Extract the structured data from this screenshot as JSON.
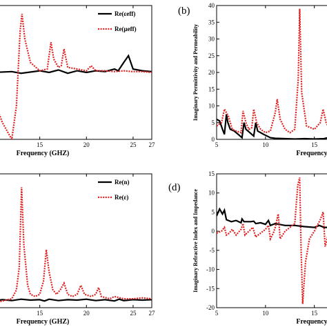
{
  "chart_data": [
    {
      "id": "a",
      "type": "line",
      "xlabel": "Frequency (GHZ)",
      "ylabel": "",
      "xlim": [
        10,
        27
      ],
      "ylim": [
        -4,
        4
      ],
      "xticks": [
        15,
        20,
        25,
        27
      ],
      "yticks": [],
      "legend": "top-right",
      "series": [
        {
          "name": "Re(εeff)",
          "style": "solid",
          "color": "#000000",
          "points": [
            [
              10,
              0
            ],
            [
              12,
              0.05
            ],
            [
              13,
              -0.05
            ],
            [
              15,
              0.1
            ],
            [
              16,
              0
            ],
            [
              17,
              0.15
            ],
            [
              18,
              -0.05
            ],
            [
              19,
              0.1
            ],
            [
              20,
              0
            ],
            [
              21,
              0.1
            ],
            [
              22,
              0.05
            ],
            [
              23,
              0.2
            ],
            [
              23.4,
              0.1
            ],
            [
              24,
              0.6
            ],
            [
              24.5,
              1.0
            ],
            [
              25,
              0.2
            ],
            [
              26,
              0.1
            ],
            [
              27,
              0.05
            ]
          ]
        },
        {
          "name": "Re(μeff)",
          "style": "dotted",
          "color": "#e02020",
          "points": [
            [
              10,
              -1.5
            ],
            [
              11,
              -3.0
            ],
            [
              12,
              -4.0
            ],
            [
              12.5,
              -2.0
            ],
            [
              12.9,
              2.5
            ],
            [
              13.1,
              3.5
            ],
            [
              13.4,
              2.0
            ],
            [
              14,
              0.6
            ],
            [
              15,
              0.1
            ],
            [
              15.8,
              0.2
            ],
            [
              16.2,
              1.8
            ],
            [
              16.5,
              0.8
            ],
            [
              17,
              0.3
            ],
            [
              17.3,
              0.4
            ],
            [
              17.6,
              1.4
            ],
            [
              18,
              0.3
            ],
            [
              19,
              0.2
            ],
            [
              20,
              0.1
            ],
            [
              20.5,
              0.4
            ],
            [
              21,
              0.1
            ],
            [
              22,
              0.1
            ],
            [
              23,
              0.05
            ],
            [
              24,
              0.1
            ],
            [
              25,
              0.05
            ],
            [
              26,
              0.05
            ],
            [
              27,
              0
            ]
          ]
        }
      ]
    },
    {
      "id": "b",
      "label": "(b)",
      "type": "line",
      "xlabel": "Frequency",
      "ylabel": "Imaginary Permittivity and Permeability",
      "xlim": [
        5,
        17
      ],
      "ylim": [
        0,
        40
      ],
      "xticks": [
        5,
        10,
        15
      ],
      "yticks": [
        0,
        5,
        10,
        15,
        20,
        25,
        30,
        35,
        40
      ],
      "legend": "none",
      "series": [
        {
          "name": "",
          "style": "solid",
          "color": "#000000",
          "points": [
            [
              5,
              6
            ],
            [
              5.3,
              5.5
            ],
            [
              5.6,
              3
            ],
            [
              5.8,
              1.5
            ],
            [
              6,
              7.5
            ],
            [
              6.15,
              5
            ],
            [
              6.4,
              3
            ],
            [
              6.8,
              2.5
            ],
            [
              7.2,
              1.5
            ],
            [
              7.6,
              0.5
            ],
            [
              7.8,
              5
            ],
            [
              8,
              3
            ],
            [
              8.4,
              2
            ],
            [
              8.8,
              1
            ],
            [
              9.0,
              5
            ],
            [
              9.2,
              2.5
            ],
            [
              9.8,
              1.5
            ],
            [
              10.5,
              0.5
            ],
            [
              11,
              0.3
            ],
            [
              12,
              0.2
            ],
            [
              13,
              0.1
            ],
            [
              14,
              0.2
            ],
            [
              15,
              0.1
            ],
            [
              16,
              0.2
            ],
            [
              17,
              1.0
            ]
          ]
        },
        {
          "name": "",
          "style": "dotted",
          "color": "#e02020",
          "points": [
            [
              5,
              4
            ],
            [
              5.5,
              5
            ],
            [
              5.8,
              9
            ],
            [
              6.2,
              7
            ],
            [
              6.6,
              3
            ],
            [
              7,
              2.5
            ],
            [
              7.5,
              2
            ],
            [
              7.7,
              8.5
            ],
            [
              8,
              5
            ],
            [
              8.3,
              3
            ],
            [
              8.6,
              3.5
            ],
            [
              8.8,
              9
            ],
            [
              9.1,
              5
            ],
            [
              9.5,
              3
            ],
            [
              10,
              2
            ],
            [
              10.5,
              2.5
            ],
            [
              11,
              8
            ],
            [
              11.2,
              12
            ],
            [
              11.5,
              6
            ],
            [
              12,
              3
            ],
            [
              12.5,
              2
            ],
            [
              13,
              3
            ],
            [
              13.35,
              18
            ],
            [
              13.5,
              39
            ],
            [
              13.7,
              14
            ],
            [
              14.2,
              4
            ],
            [
              15,
              3
            ],
            [
              15.6,
              5
            ],
            [
              15.9,
              9
            ],
            [
              16.2,
              5
            ],
            [
              16.6,
              3
            ],
            [
              17,
              2
            ]
          ]
        }
      ]
    },
    {
      "id": "c",
      "type": "line",
      "xlabel": "Frequency (GHZ)",
      "ylabel": "",
      "xlim": [
        10,
        27
      ],
      "ylim": [
        0,
        30
      ],
      "xticks": [
        15,
        20,
        25,
        27
      ],
      "yticks": [],
      "legend": "top-right",
      "series": [
        {
          "name": "Re(n)",
          "style": "solid",
          "color": "#000000",
          "points": [
            [
              10,
              1.5
            ],
            [
              11,
              1.8
            ],
            [
              12,
              1.6
            ],
            [
              13,
              1.9
            ],
            [
              14,
              1.7
            ],
            [
              15,
              1.8
            ],
            [
              15.5,
              1.5
            ],
            [
              16,
              1.9
            ],
            [
              17,
              1.6
            ],
            [
              18,
              1.8
            ],
            [
              19,
              1.7
            ],
            [
              20,
              1.9
            ],
            [
              21,
              1.6
            ],
            [
              22,
              1.8
            ],
            [
              23,
              1.5
            ],
            [
              23.5,
              1.9
            ],
            [
              24,
              1.6
            ],
            [
              25,
              1.8
            ],
            [
              26,
              1.7
            ],
            [
              27,
              1.8
            ]
          ]
        },
        {
          "name": "Re(ε)",
          "style": "dotted",
          "color": "#e02020",
          "points": [
            [
              10,
              1
            ],
            [
              11,
              1.5
            ],
            [
              12,
              2
            ],
            [
              12.5,
              4
            ],
            [
              12.8,
              9
            ],
            [
              13.05,
              27
            ],
            [
              13.3,
              14
            ],
            [
              13.7,
              5
            ],
            [
              14,
              3
            ],
            [
              14.5,
              2.5
            ],
            [
              15,
              3
            ],
            [
              15.4,
              6
            ],
            [
              15.7,
              13
            ],
            [
              16,
              8
            ],
            [
              16.4,
              4
            ],
            [
              16.8,
              3
            ],
            [
              17.2,
              4
            ],
            [
              17.6,
              5.5
            ],
            [
              18,
              3
            ],
            [
              18.5,
              2.5
            ],
            [
              19,
              3
            ],
            [
              19.4,
              5
            ],
            [
              19.8,
              3
            ],
            [
              20.5,
              2.5
            ],
            [
              21,
              3
            ],
            [
              21.3,
              4.5
            ],
            [
              21.6,
              2.5
            ],
            [
              22.5,
              2
            ],
            [
              23,
              2.5
            ],
            [
              24,
              2
            ],
            [
              25,
              2
            ],
            [
              26,
              2.2
            ],
            [
              27,
              2
            ]
          ]
        }
      ]
    },
    {
      "id": "d",
      "label": "(d)",
      "type": "line",
      "xlabel": "Frequency",
      "ylabel": "Imaginary Refractive Index and Impedance",
      "xlim": [
        5,
        17
      ],
      "ylim": [
        -20,
        15
      ],
      "xticks": [
        5,
        10,
        15
      ],
      "yticks": [
        -20,
        -15,
        -10,
        -5,
        0,
        5,
        10,
        15
      ],
      "legend": "none",
      "series": [
        {
          "name": "",
          "style": "solid",
          "color": "#000000",
          "points": [
            [
              5,
              4
            ],
            [
              5.3,
              5.8
            ],
            [
              5.6,
              4.5
            ],
            [
              5.8,
              5.5
            ],
            [
              6,
              3
            ],
            [
              6.5,
              2.5
            ],
            [
              7,
              2.8
            ],
            [
              7.5,
              2.2
            ],
            [
              7.6,
              3.2
            ],
            [
              7.8,
              2.5
            ],
            [
              8.5,
              2.5
            ],
            [
              8.8,
              2.6
            ],
            [
              9,
              2
            ],
            [
              9.5,
              2.2
            ],
            [
              10,
              1.8
            ],
            [
              10.3,
              2.8
            ],
            [
              10.5,
              1.5
            ],
            [
              11,
              2
            ],
            [
              12,
              1.5
            ],
            [
              13,
              1.5
            ],
            [
              14,
              1.2
            ],
            [
              15,
              1.0
            ],
            [
              15.5,
              1.5
            ],
            [
              16,
              1.0
            ],
            [
              17,
              1.0
            ]
          ]
        },
        {
          "name": "",
          "style": "dotted",
          "color": "#e02020",
          "points": [
            [
              5,
              -0.5
            ],
            [
              5.5,
              0
            ],
            [
              5.8,
              1
            ],
            [
              6,
              -1
            ],
            [
              6.3,
              -0.5
            ],
            [
              6.6,
              0.5
            ],
            [
              7,
              -1
            ],
            [
              7.5,
              0.5
            ],
            [
              7.7,
              2
            ],
            [
              7.9,
              -1
            ],
            [
              8.3,
              0
            ],
            [
              8.7,
              1
            ],
            [
              9,
              -1.5
            ],
            [
              9.5,
              -0.5
            ],
            [
              10,
              0.5
            ],
            [
              10.3,
              1.5
            ],
            [
              10.5,
              -2
            ],
            [
              10.8,
              -0.5
            ],
            [
              11,
              1
            ],
            [
              11.3,
              4.5
            ],
            [
              11.5,
              -2
            ],
            [
              12,
              0
            ],
            [
              12.5,
              1
            ],
            [
              13,
              2
            ],
            [
              13.3,
              12
            ],
            [
              13.5,
              14
            ],
            [
              13.65,
              -5
            ],
            [
              13.8,
              -19
            ],
            [
              14.1,
              -8
            ],
            [
              14.5,
              -2
            ],
            [
              15,
              0
            ],
            [
              15.6,
              3
            ],
            [
              15.9,
              5
            ],
            [
              16.1,
              -4
            ],
            [
              16.4,
              -1
            ],
            [
              17,
              0
            ]
          ]
        }
      ]
    }
  ]
}
